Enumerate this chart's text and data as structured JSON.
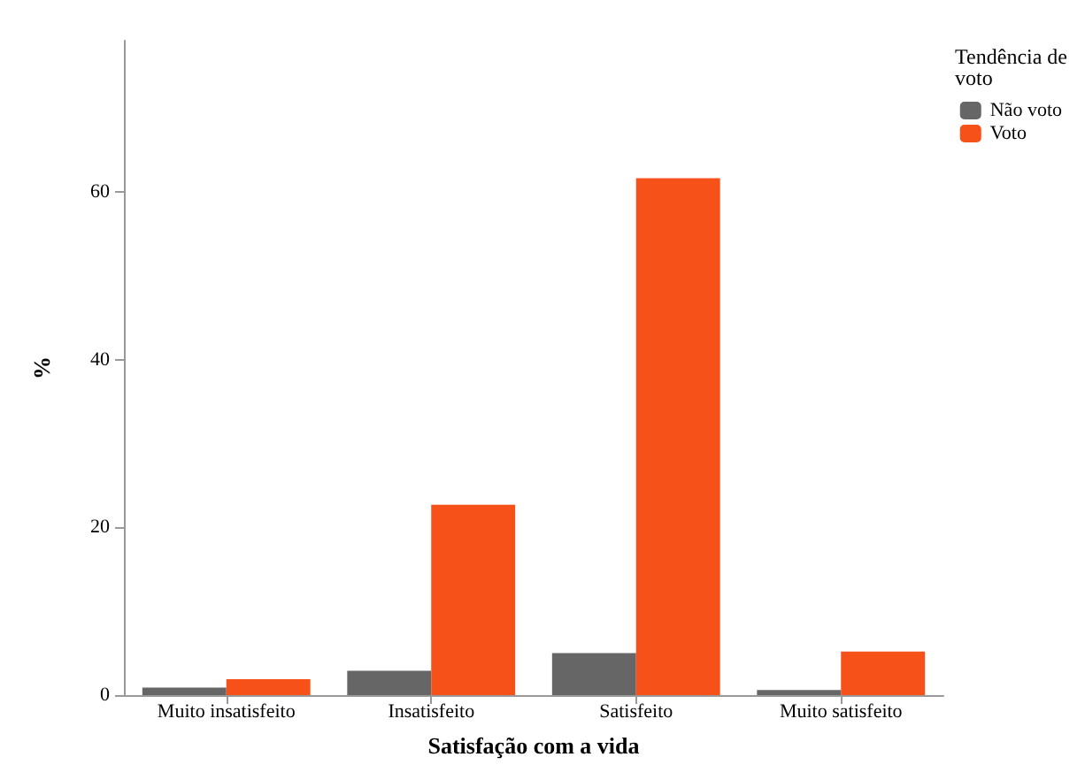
{
  "chart_data": {
    "type": "bar",
    "xlabel": "Satisfação com a vida",
    "ylabel": "%",
    "legend_title": "Tendência de voto",
    "categories": [
      "Muito insatisfeito",
      "Insatisfeito",
      "Satisfeito",
      "Muito satisfeito"
    ],
    "series": [
      {
        "name": "Não voto",
        "color": "#666666",
        "values": [
          0.9,
          2.9,
          5.0,
          0.6
        ]
      },
      {
        "name": "Voto",
        "color": "#f55118",
        "values": [
          1.9,
          22.7,
          61.6,
          5.2
        ]
      }
    ],
    "ylim": [
      0,
      78
    ],
    "yticks": [
      0,
      20,
      40,
      60
    ],
    "grid": false,
    "legend": "top right"
  }
}
